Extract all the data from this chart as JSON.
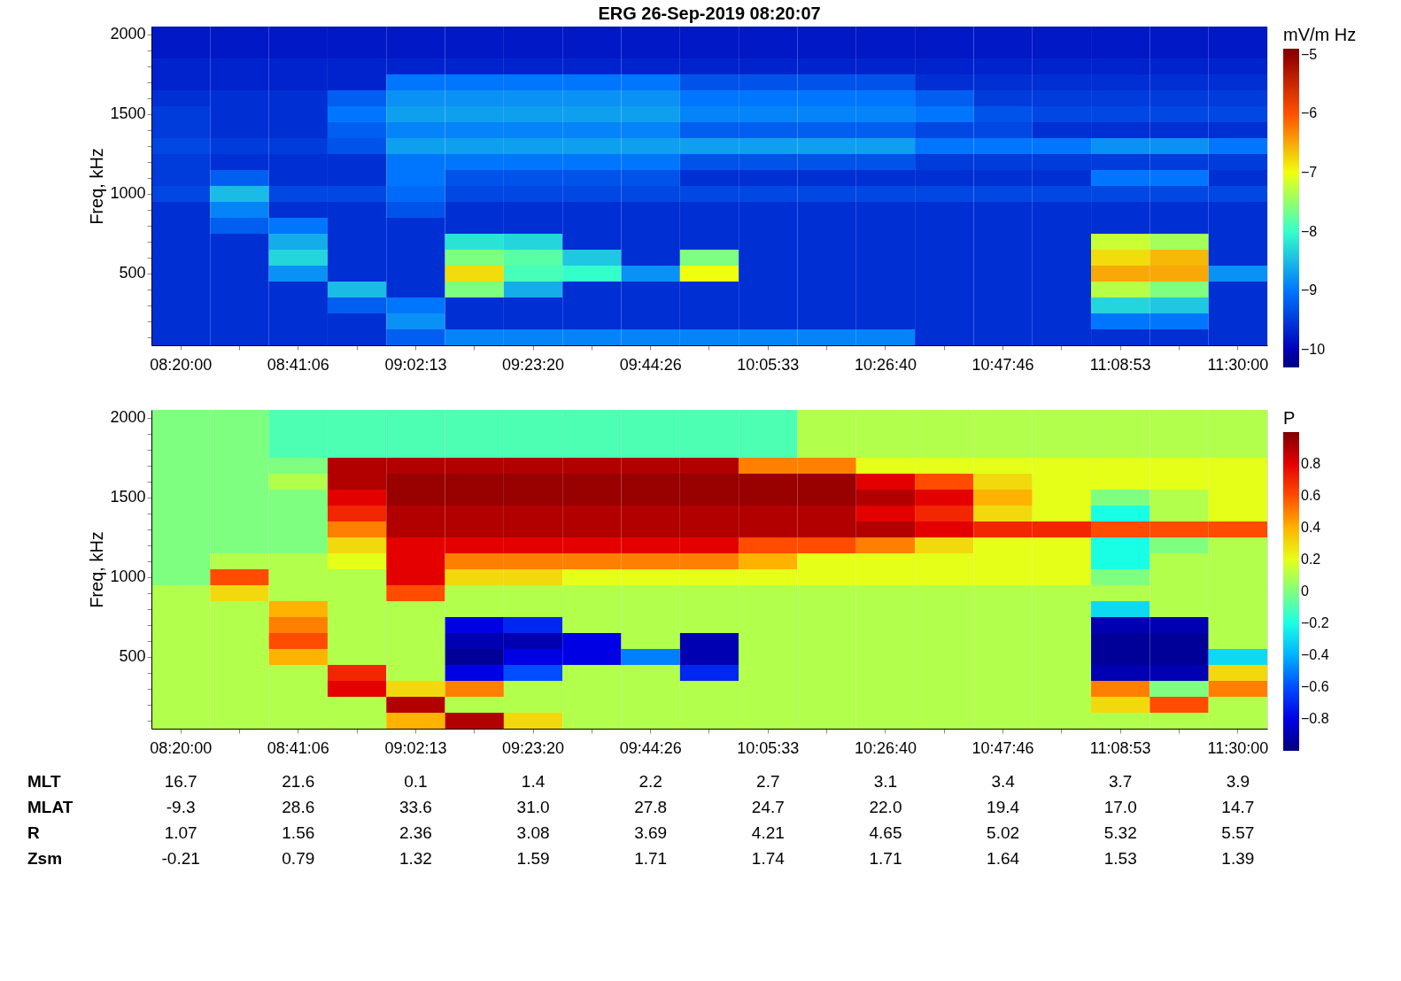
{
  "chart_data": [
    {
      "type": "heatmap",
      "title": "ERG  26-Sep-2019 08:20:07",
      "ylabel": "Freq, kHz",
      "clabel": "mV/m Hz",
      "clim": [
        -10.3,
        -4.9
      ],
      "cticks": [
        -5,
        -6,
        -7,
        -8,
        -9,
        -10
      ],
      "categories": [
        "08:20:00",
        null,
        "08:41:06",
        null,
        "09:02:13",
        null,
        "09:23:20",
        null,
        "09:44:26",
        null,
        "10:05:33",
        null,
        "10:26:40",
        null,
        "10:47:46",
        null,
        "11:08:53",
        null,
        "11:30:00"
      ],
      "y_categories": [
        "2000",
        null,
        null,
        null,
        null,
        "1500",
        null,
        null,
        null,
        null,
        "1000",
        null,
        null,
        null,
        null,
        "500",
        null,
        null,
        null,
        null
      ],
      "cells": [
        [
          -9.8,
          -9.8,
          -9.8,
          -9.8,
          -9.8,
          -9.8,
          -9.8,
          -9.8,
          -9.8,
          -9.8,
          -9.8,
          -9.8,
          -9.8,
          -9.8,
          -9.8,
          -9.8,
          -9.8,
          -9.8,
          -9.8
        ],
        [
          -9.8,
          -9.8,
          -9.8,
          -9.8,
          -9.8,
          -9.8,
          -9.8,
          -9.8,
          -9.8,
          -9.8,
          -9.8,
          -9.8,
          -9.8,
          -9.8,
          -9.8,
          -9.8,
          -9.8,
          -9.8,
          -9.8
        ],
        [
          -9.7,
          -9.7,
          -9.7,
          -9.7,
          -9.7,
          -9.7,
          -9.7,
          -9.7,
          -9.7,
          -9.7,
          -9.7,
          -9.7,
          -9.7,
          -9.7,
          -9.7,
          -9.7,
          -9.7,
          -9.7,
          -9.7
        ],
        [
          -9.7,
          -9.7,
          -9.7,
          -9.7,
          -9.0,
          -9.0,
          -9.0,
          -9.0,
          -9.0,
          -9.3,
          -9.3,
          -9.3,
          -9.3,
          -9.6,
          -9.6,
          -9.6,
          -9.6,
          -9.6,
          -9.6
        ],
        [
          -9.6,
          -9.6,
          -9.6,
          -9.2,
          -8.8,
          -8.8,
          -8.8,
          -8.8,
          -8.8,
          -9.0,
          -9.0,
          -9.0,
          -9.0,
          -9.2,
          -9.5,
          -9.5,
          -9.5,
          -9.5,
          -9.5
        ],
        [
          -9.5,
          -9.6,
          -9.6,
          -9.0,
          -8.7,
          -8.7,
          -8.7,
          -8.7,
          -8.7,
          -8.9,
          -8.9,
          -8.9,
          -8.9,
          -9.0,
          -9.3,
          -9.4,
          -9.4,
          -9.4,
          -9.4
        ],
        [
          -9.5,
          -9.6,
          -9.6,
          -9.2,
          -8.9,
          -8.9,
          -8.9,
          -8.9,
          -8.9,
          -9.2,
          -9.2,
          -9.2,
          -9.2,
          -9.4,
          -9.4,
          -9.6,
          -9.6,
          -9.6,
          -9.6
        ],
        [
          -9.4,
          -9.5,
          -9.5,
          -9.3,
          -8.7,
          -8.7,
          -8.7,
          -8.7,
          -8.7,
          -8.7,
          -8.7,
          -8.7,
          -8.7,
          -9.0,
          -9.0,
          -9.0,
          -8.8,
          -8.8,
          -9.0
        ],
        [
          -9.5,
          -9.6,
          -9.6,
          -9.6,
          -9.0,
          -9.0,
          -9.0,
          -9.0,
          -9.0,
          -9.3,
          -9.3,
          -9.3,
          -9.3,
          -9.5,
          -9.5,
          -9.5,
          -9.5,
          -9.5,
          -9.5
        ],
        [
          -9.5,
          -9.2,
          -9.6,
          -9.6,
          -9.0,
          -9.3,
          -9.3,
          -9.3,
          -9.3,
          -9.6,
          -9.6,
          -9.6,
          -9.6,
          -9.6,
          -9.6,
          -9.6,
          -9.0,
          -9.0,
          -9.6
        ],
        [
          -9.4,
          -8.5,
          -9.4,
          -9.4,
          -9.1,
          -9.4,
          -9.4,
          -9.4,
          -9.4,
          -9.4,
          -9.4,
          -9.4,
          -9.4,
          -9.4,
          -9.4,
          -9.4,
          -9.4,
          -9.4,
          -9.4
        ],
        [
          -9.6,
          -8.9,
          -9.6,
          -9.6,
          -9.3,
          -9.6,
          -9.6,
          -9.6,
          -9.6,
          -9.6,
          -9.6,
          -9.6,
          -9.6,
          -9.6,
          -9.6,
          -9.6,
          -9.6,
          -9.6,
          -9.6
        ],
        [
          -9.6,
          -9.2,
          -9.0,
          -9.6,
          -9.6,
          -9.6,
          -9.6,
          -9.6,
          -9.6,
          -9.6,
          -9.6,
          -9.6,
          -9.6,
          -9.6,
          -9.6,
          -9.6,
          -9.6,
          -9.6,
          -9.6
        ],
        [
          -9.6,
          -9.6,
          -8.6,
          -9.6,
          -9.6,
          -8.2,
          -8.3,
          -9.6,
          -9.6,
          -9.6,
          -9.6,
          -9.6,
          -9.6,
          -9.6,
          -9.6,
          -9.6,
          -7.2,
          -7.4,
          -9.6
        ],
        [
          -9.6,
          -9.6,
          -8.3,
          -9.6,
          -9.6,
          -7.6,
          -7.8,
          -8.4,
          -9.6,
          -7.6,
          -9.6,
          -9.6,
          -9.6,
          -9.6,
          -9.6,
          -9.6,
          -6.8,
          -6.6,
          -9.6
        ],
        [
          -9.6,
          -9.6,
          -8.8,
          -9.6,
          -9.6,
          -6.8,
          -7.9,
          -8.0,
          -8.8,
          -7.0,
          -9.6,
          -9.6,
          -9.6,
          -9.6,
          -9.6,
          -9.6,
          -6.5,
          -6.5,
          -8.8
        ],
        [
          -9.6,
          -9.6,
          -9.6,
          -8.5,
          -9.6,
          -7.6,
          -8.6,
          -9.6,
          -9.6,
          -9.6,
          -9.6,
          -9.6,
          -9.6,
          -9.6,
          -9.6,
          -9.6,
          -7.3,
          -7.6,
          -9.6
        ],
        [
          -9.6,
          -9.6,
          -9.6,
          -9.2,
          -9.0,
          -9.6,
          -9.6,
          -9.6,
          -9.6,
          -9.6,
          -9.6,
          -9.6,
          -9.6,
          -9.6,
          -9.6,
          -9.6,
          -8.3,
          -8.4,
          -9.6
        ],
        [
          -9.6,
          -9.6,
          -9.6,
          -9.6,
          -8.8,
          -9.6,
          -9.6,
          -9.6,
          -9.6,
          -9.6,
          -9.6,
          -9.6,
          -9.6,
          -9.6,
          -9.6,
          -9.6,
          -9.0,
          -9.0,
          -9.6
        ],
        [
          -9.6,
          -9.6,
          -9.6,
          -9.6,
          -9.2,
          -8.9,
          -8.9,
          -8.9,
          -8.9,
          -8.9,
          -8.9,
          -8.9,
          -8.9,
          -9.6,
          -9.6,
          -9.6,
          -9.6,
          -9.6,
          -9.6
        ]
      ]
    },
    {
      "type": "heatmap",
      "ylabel": "Freq, kHz",
      "clabel": "P",
      "clim": [
        -1,
        1
      ],
      "cticks": [
        0.8,
        0.6,
        0.4,
        0.2,
        0,
        -0.2,
        -0.4,
        -0.6,
        -0.8
      ],
      "categories": [
        "08:20:00",
        null,
        "08:41:06",
        null,
        "09:02:13",
        null,
        "09:23:20",
        null,
        "09:44:26",
        null,
        "10:05:33",
        null,
        "10:26:40",
        null,
        "10:47:46",
        null,
        "11:08:53",
        null,
        "11:30:00"
      ],
      "y_categories": [
        "2000",
        null,
        null,
        null,
        null,
        "1500",
        null,
        null,
        null,
        null,
        "1000",
        null,
        null,
        null,
        null,
        "500",
        null,
        null,
        null,
        null
      ],
      "cells": [
        [
          0.0,
          0.0,
          -0.1,
          -0.1,
          -0.1,
          -0.1,
          -0.1,
          -0.1,
          -0.1,
          -0.1,
          -0.1,
          0.1,
          0.1,
          0.1,
          0.1,
          0.1,
          0.1,
          0.1,
          0.1
        ],
        [
          0.0,
          0.0,
          -0.1,
          -0.1,
          -0.1,
          -0.1,
          -0.1,
          -0.1,
          -0.1,
          -0.1,
          -0.1,
          0.1,
          0.1,
          0.1,
          0.1,
          0.1,
          0.1,
          0.1,
          0.1
        ],
        [
          0.0,
          0.0,
          -0.1,
          -0.1,
          -0.1,
          -0.1,
          -0.1,
          -0.1,
          -0.1,
          -0.1,
          -0.1,
          0.1,
          0.1,
          0.1,
          0.1,
          0.1,
          0.1,
          0.1,
          0.1
        ],
        [
          0.0,
          0.0,
          0.0,
          0.9,
          0.9,
          0.9,
          0.9,
          0.9,
          0.9,
          0.9,
          0.5,
          0.5,
          0.2,
          0.2,
          0.2,
          0.2,
          0.2,
          0.2,
          0.2
        ],
        [
          0.0,
          0.0,
          0.1,
          0.9,
          0.95,
          0.95,
          0.95,
          0.95,
          0.95,
          0.95,
          0.95,
          0.95,
          0.8,
          0.6,
          0.3,
          0.2,
          0.2,
          0.2,
          0.2
        ],
        [
          0.0,
          0.0,
          0.0,
          0.8,
          0.95,
          0.95,
          0.95,
          0.95,
          0.95,
          0.95,
          0.95,
          0.95,
          0.9,
          0.8,
          0.4,
          0.2,
          0.0,
          0.1,
          0.2
        ],
        [
          0.0,
          0.0,
          0.0,
          0.7,
          0.9,
          0.9,
          0.9,
          0.9,
          0.9,
          0.9,
          0.9,
          0.9,
          0.8,
          0.7,
          0.3,
          0.2,
          -0.2,
          0.1,
          0.2
        ],
        [
          0.0,
          0.0,
          0.0,
          0.5,
          0.9,
          0.9,
          0.9,
          0.9,
          0.9,
          0.9,
          0.9,
          0.9,
          0.9,
          0.8,
          0.7,
          0.7,
          0.6,
          0.6,
          0.6
        ],
        [
          0.0,
          0.0,
          0.0,
          0.3,
          0.8,
          0.8,
          0.8,
          0.8,
          0.8,
          0.8,
          0.6,
          0.6,
          0.5,
          0.3,
          0.2,
          0.2,
          -0.2,
          0.0,
          0.1
        ],
        [
          0.0,
          0.1,
          0.1,
          0.2,
          0.8,
          0.5,
          0.5,
          0.5,
          0.5,
          0.5,
          0.4,
          0.2,
          0.2,
          0.2,
          0.2,
          0.2,
          -0.2,
          0.1,
          0.1
        ],
        [
          0.0,
          0.6,
          0.1,
          0.1,
          0.8,
          0.3,
          0.3,
          0.2,
          0.2,
          0.2,
          0.2,
          0.2,
          0.2,
          0.2,
          0.2,
          0.2,
          0.0,
          0.1,
          0.1
        ],
        [
          0.1,
          0.3,
          0.1,
          0.1,
          0.6,
          0.1,
          0.1,
          0.1,
          0.1,
          0.1,
          0.1,
          0.1,
          0.1,
          0.1,
          0.1,
          0.1,
          0.1,
          0.1,
          0.1
        ],
        [
          0.1,
          0.1,
          0.4,
          0.1,
          0.1,
          0.1,
          0.1,
          0.1,
          0.1,
          0.1,
          0.1,
          0.1,
          0.1,
          0.1,
          0.1,
          0.1,
          -0.3,
          0.1,
          0.1
        ],
        [
          0.1,
          0.1,
          0.5,
          0.1,
          0.1,
          -0.8,
          -0.7,
          0.1,
          0.1,
          0.1,
          0.1,
          0.1,
          0.1,
          0.1,
          0.1,
          0.1,
          -0.9,
          -0.9,
          0.1
        ],
        [
          0.1,
          0.1,
          0.6,
          0.1,
          0.1,
          -0.9,
          -0.9,
          -0.8,
          0.1,
          -0.9,
          0.1,
          0.1,
          0.1,
          0.1,
          0.1,
          0.1,
          -0.95,
          -0.95,
          0.1
        ],
        [
          0.1,
          0.1,
          0.4,
          0.1,
          0.1,
          -0.95,
          -0.8,
          -0.8,
          -0.5,
          -0.9,
          0.1,
          0.1,
          0.1,
          0.1,
          0.1,
          0.1,
          -0.95,
          -0.95,
          -0.3
        ],
        [
          0.1,
          0.1,
          0.1,
          0.7,
          0.1,
          -0.8,
          -0.6,
          0.1,
          0.1,
          -0.7,
          0.1,
          0.1,
          0.1,
          0.1,
          0.1,
          0.1,
          -0.9,
          -0.9,
          0.3
        ],
        [
          0.1,
          0.1,
          0.1,
          0.8,
          0.3,
          0.5,
          0.1,
          0.1,
          0.1,
          0.1,
          0.1,
          0.1,
          0.1,
          0.1,
          0.1,
          0.1,
          0.5,
          0.0,
          0.5
        ],
        [
          0.1,
          0.1,
          0.1,
          0.1,
          0.9,
          0.1,
          0.1,
          0.1,
          0.1,
          0.1,
          0.1,
          0.1,
          0.1,
          0.1,
          0.1,
          0.1,
          0.3,
          0.6,
          0.1
        ],
        [
          0.1,
          0.1,
          0.1,
          0.1,
          0.4,
          0.9,
          0.3,
          0.1,
          0.1,
          0.1,
          0.1,
          0.1,
          0.1,
          0.1,
          0.1,
          0.1,
          0.1,
          0.1,
          0.1
        ]
      ],
      "annotations": [
        "MLT",
        "16.7",
        "21.6",
        "0.1",
        "1.4",
        "2.2",
        "2.7",
        "3.1",
        "3.4",
        "3.7",
        "3.9",
        "MLAT",
        "-9.3",
        "28.6",
        "33.6",
        "31.0",
        "27.8",
        "24.7",
        "22.0",
        "19.4",
        "17.0",
        "14.7",
        "R",
        "1.07",
        "1.56",
        "2.36",
        "3.08",
        "3.69",
        "4.21",
        "4.65",
        "5.02",
        "5.32",
        "5.57",
        "Zsm",
        "-0.21",
        "0.79",
        "1.32",
        "1.59",
        "1.71",
        "1.74",
        "1.71",
        "1.64",
        "1.53",
        "1.39"
      ]
    }
  ]
}
